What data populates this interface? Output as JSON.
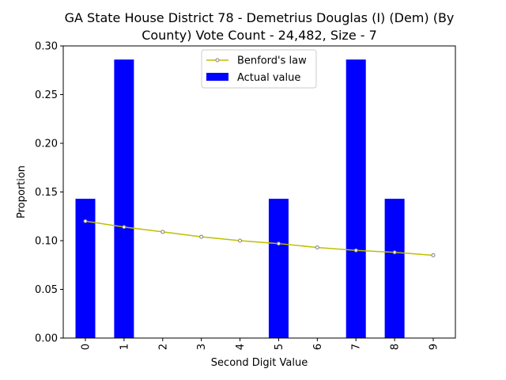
{
  "chart_data": {
    "type": "bar",
    "title_line1": "GA State House District 78 - Demetrius Douglas (I) (Dem) (By",
    "title_line2": "County) Vote Count - 24,482, Size - 7",
    "xlabel": "Second Digit Value",
    "ylabel": "Proportion",
    "categories": [
      "0",
      "1",
      "2",
      "3",
      "4",
      "5",
      "6",
      "7",
      "8",
      "9"
    ],
    "ylim": [
      0,
      0.3
    ],
    "yticks": [
      "0.00",
      "0.05",
      "0.10",
      "0.15",
      "0.20",
      "0.25",
      "0.30"
    ],
    "legend_position": "top-center",
    "series": [
      {
        "name": "Benford's law",
        "kind": "line",
        "color": "#bfbf00",
        "values": [
          0.12,
          0.114,
          0.109,
          0.104,
          0.1,
          0.097,
          0.093,
          0.09,
          0.088,
          0.085
        ]
      },
      {
        "name": "Actual value",
        "kind": "bar",
        "color": "#0000ff",
        "values": [
          0.143,
          0.286,
          0,
          0,
          0,
          0.143,
          0,
          0.286,
          0.143,
          0
        ]
      }
    ]
  }
}
